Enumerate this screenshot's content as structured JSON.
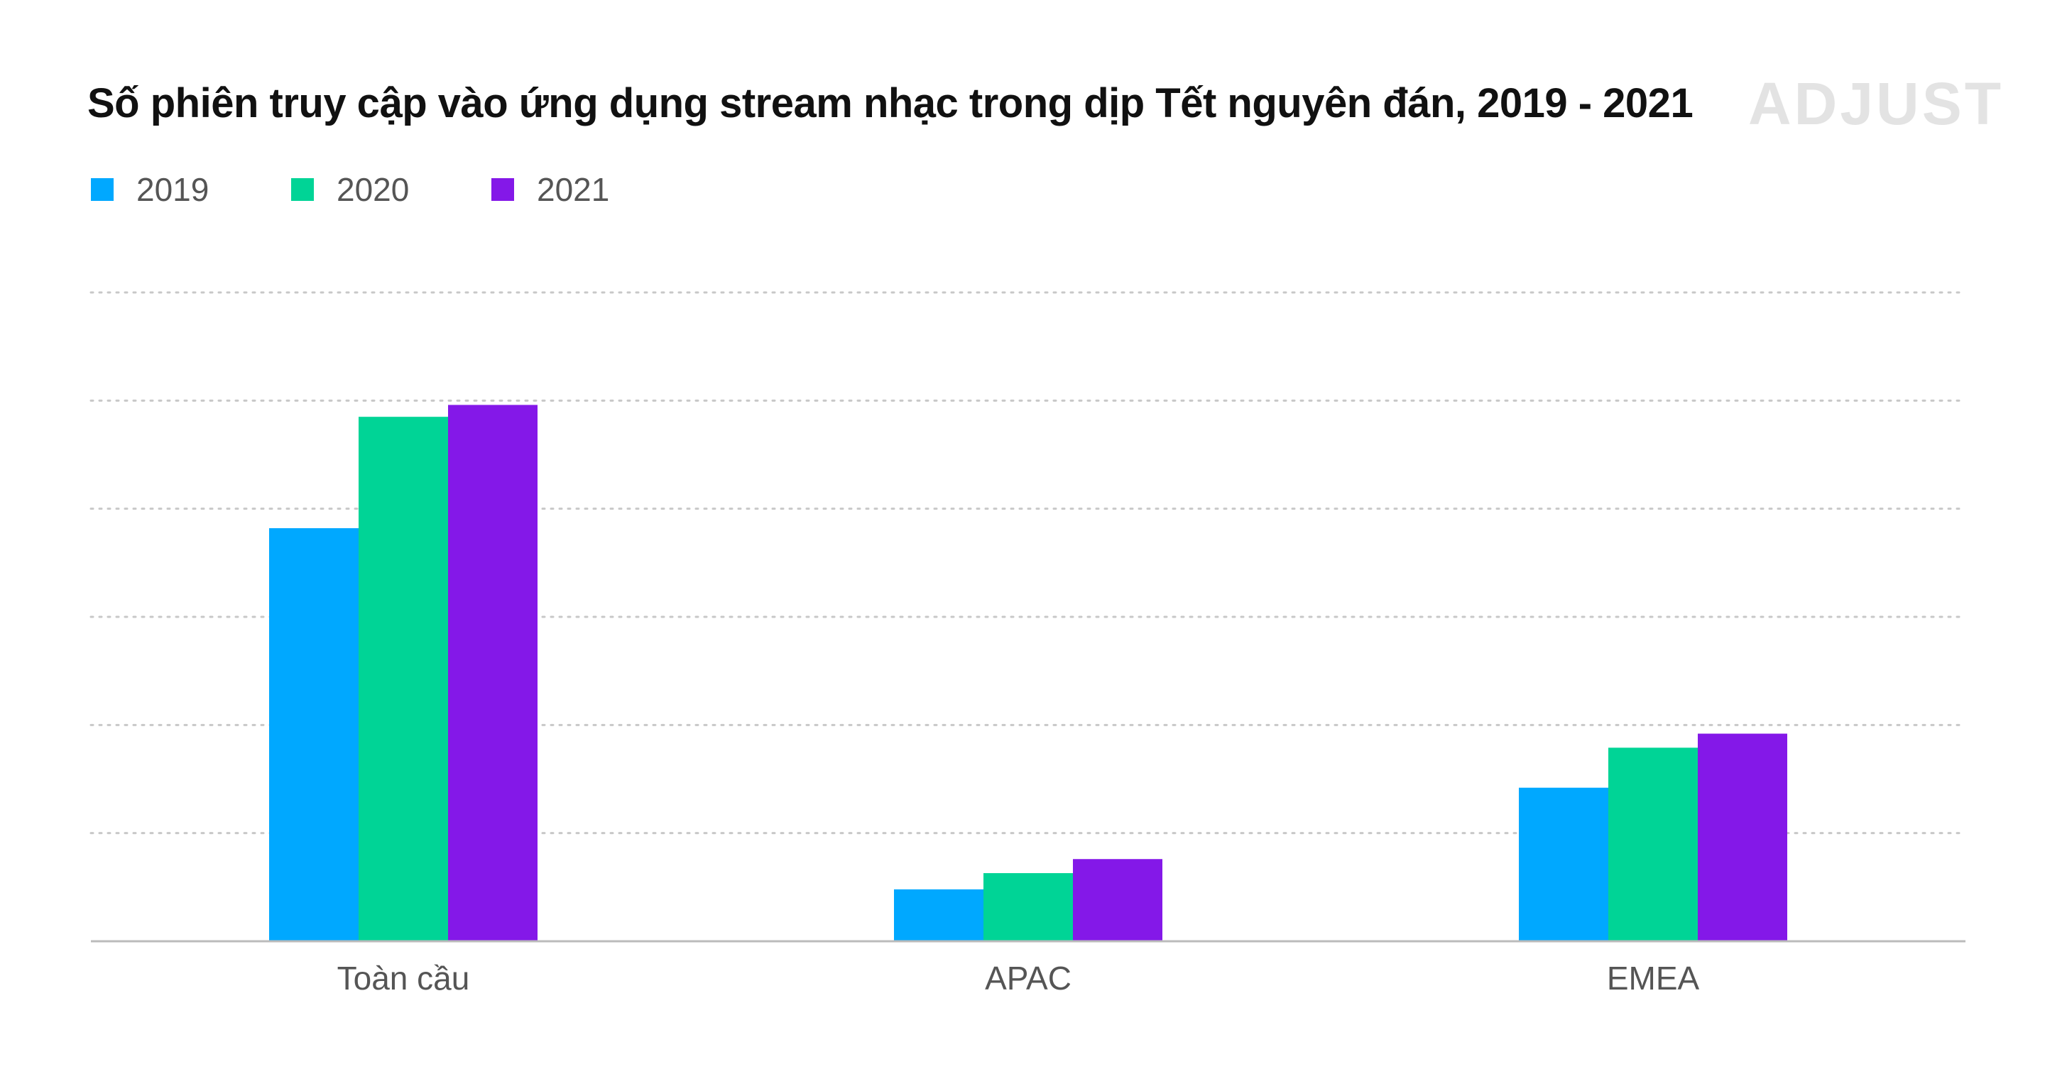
{
  "header": {
    "title": "Số phiên truy cập vào ứng dụng stream nhạc trong dịp Tết nguyên đán, 2019 - 2021",
    "logo": "ADJUST"
  },
  "colors": {
    "series_2019": "#00a8ff",
    "series_2020": "#00d496",
    "series_2021": "#8418e8",
    "gridline": "#c8c8c8",
    "axis": "#bbbbbb"
  },
  "chart_data": {
    "type": "bar",
    "title": "Số phiên truy cập vào ứng dụng stream nhạc trong dịp Tết nguyên đán, 2019 - 2021",
    "xlabel": "",
    "ylabel": "",
    "categories": [
      "Toàn cầu",
      "APAC",
      "EMEA"
    ],
    "series": [
      {
        "name": "2019",
        "color": "#00a8ff",
        "values": [
          3.82,
          0.48,
          1.42
        ]
      },
      {
        "name": "2020",
        "color": "#00d496",
        "values": [
          4.85,
          0.63,
          1.79
        ]
      },
      {
        "name": "2021",
        "color": "#8418e8",
        "values": [
          4.96,
          0.76,
          1.92
        ]
      }
    ],
    "ylim": [
      0,
      6
    ],
    "grid": true,
    "legend": "top-left"
  }
}
